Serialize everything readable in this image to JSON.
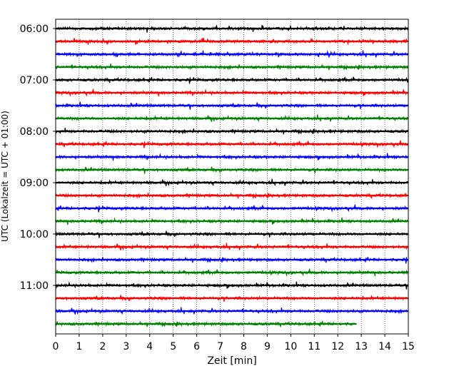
{
  "chart_data": {
    "type": "line",
    "title": "",
    "xlabel": "Zeit  [min]",
    "ylabel": "UTC (Lokalzeit = UTC + 01:00)",
    "xlim": [
      0,
      15
    ],
    "x_ticks": [
      "0",
      "1",
      "2",
      "3",
      "4",
      "5",
      "6",
      "7",
      "8",
      "9",
      "10",
      "11",
      "12",
      "13",
      "14",
      "15"
    ],
    "y_tick_labels": [
      "06:00",
      "07:00",
      "08:00",
      "09:00",
      "10:00",
      "11:00"
    ],
    "grid": "vertical dotted",
    "trace_interval_min": 15,
    "color_cycle": [
      "#000000",
      "#ff0000",
      "#0000ff",
      "#008000"
    ],
    "series": [
      {
        "start": "06:00",
        "color": "#000000",
        "end_min": 15
      },
      {
        "start": "06:15",
        "color": "#ff0000",
        "end_min": 15
      },
      {
        "start": "06:30",
        "color": "#0000ff",
        "end_min": 15
      },
      {
        "start": "06:45",
        "color": "#008000",
        "end_min": 15
      },
      {
        "start": "07:00",
        "color": "#000000",
        "end_min": 15
      },
      {
        "start": "07:15",
        "color": "#ff0000",
        "end_min": 15
      },
      {
        "start": "07:30",
        "color": "#0000ff",
        "end_min": 15
      },
      {
        "start": "07:45",
        "color": "#008000",
        "end_min": 15
      },
      {
        "start": "08:00",
        "color": "#000000",
        "end_min": 15
      },
      {
        "start": "08:15",
        "color": "#ff0000",
        "end_min": 15
      },
      {
        "start": "08:30",
        "color": "#0000ff",
        "end_min": 15
      },
      {
        "start": "08:45",
        "color": "#008000",
        "end_min": 15
      },
      {
        "start": "09:00",
        "color": "#000000",
        "end_min": 15
      },
      {
        "start": "09:15",
        "color": "#ff0000",
        "end_min": 15
      },
      {
        "start": "09:30",
        "color": "#0000ff",
        "end_min": 15
      },
      {
        "start": "09:45",
        "color": "#008000",
        "end_min": 15
      },
      {
        "start": "10:00",
        "color": "#000000",
        "end_min": 15
      },
      {
        "start": "10:15",
        "color": "#ff0000",
        "end_min": 15
      },
      {
        "start": "10:30",
        "color": "#0000ff",
        "end_min": 15
      },
      {
        "start": "10:45",
        "color": "#008000",
        "end_min": 15
      },
      {
        "start": "11:00",
        "color": "#000000",
        "end_min": 15
      },
      {
        "start": "11:15",
        "color": "#ff0000",
        "end_min": 15
      },
      {
        "start": "11:30",
        "color": "#0000ff",
        "end_min": 15
      },
      {
        "start": "11:45",
        "color": "#008000",
        "end_min": 12.8
      }
    ]
  }
}
